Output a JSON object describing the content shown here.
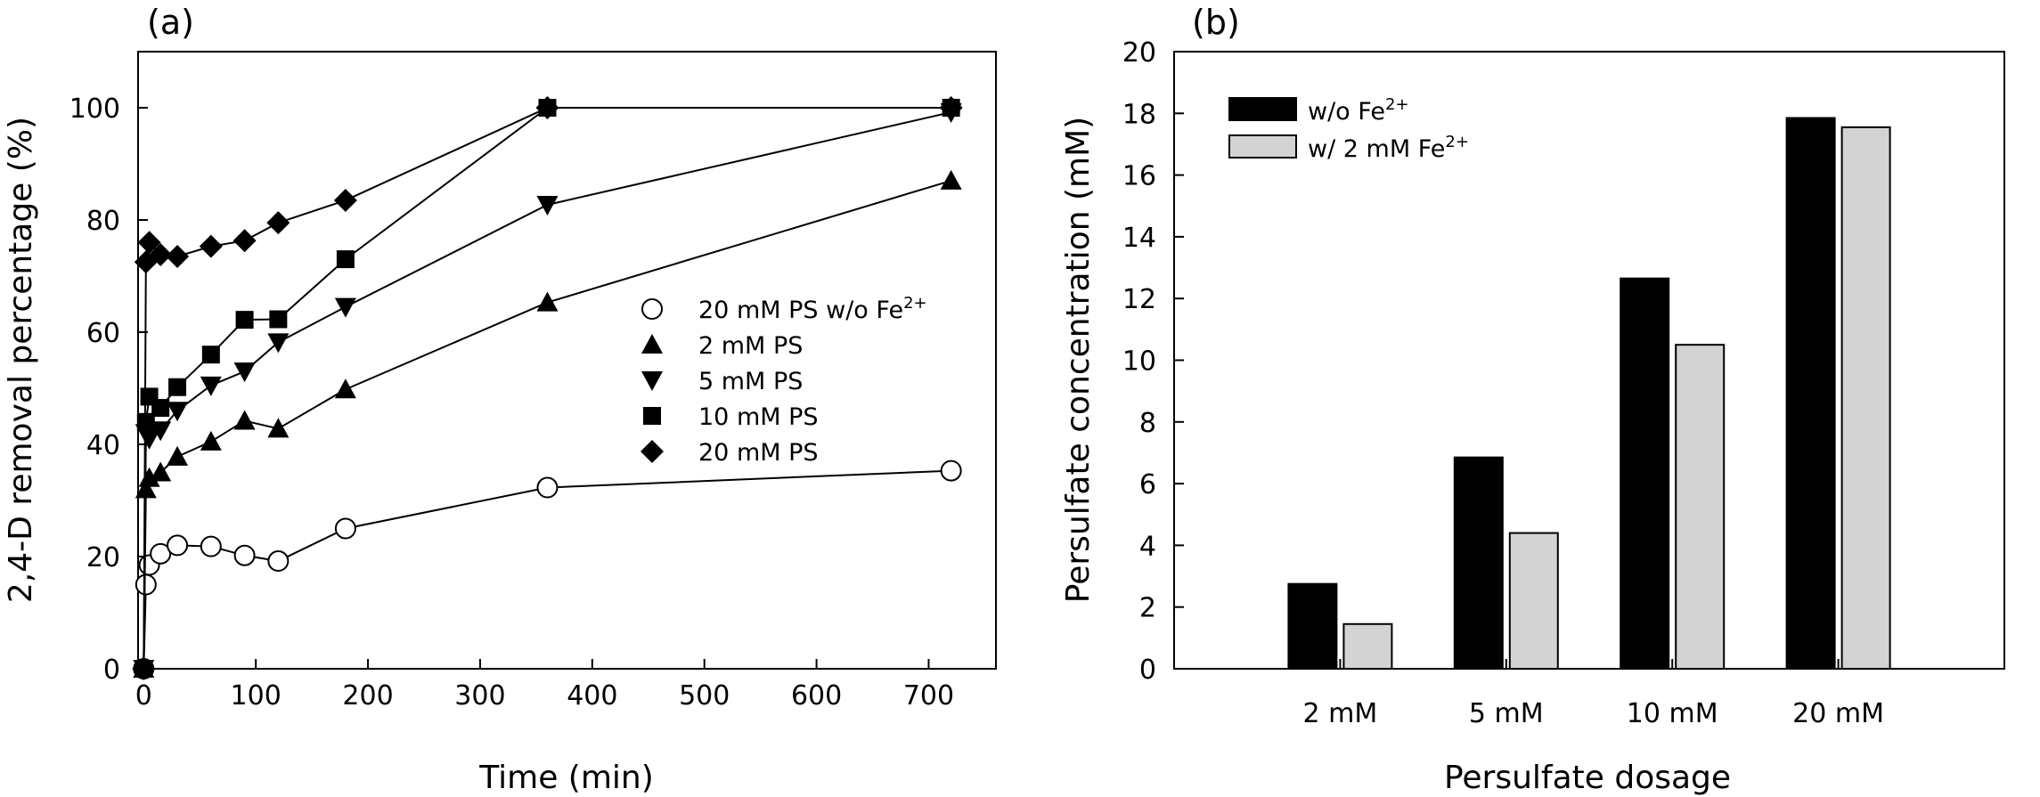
{
  "chart_data": [
    {
      "panel_label": "(a)",
      "type": "line",
      "xlabel": "Time (min)",
      "ylabel": "2,4-D removal percentage (%)",
      "xlim": [
        -5,
        760
      ],
      "ylim": [
        0,
        110
      ],
      "xticks": [
        0,
        100,
        200,
        300,
        400,
        500,
        600,
        700
      ],
      "yticks": [
        0,
        20,
        40,
        60,
        80,
        100
      ],
      "legend_position": "center-right",
      "series": [
        {
          "name": "20 mM PS w/o Fe",
          "name_sup": "2+",
          "marker": "circle-open",
          "x": [
            0,
            2,
            5,
            15,
            30,
            60,
            90,
            120,
            180,
            360,
            720
          ],
          "y": [
            0,
            15,
            18.5,
            20.5,
            22,
            21.8,
            20.2,
            19.2,
            25,
            32.3,
            35.3
          ]
        },
        {
          "name": "2 mM PS",
          "name_sup": "",
          "marker": "triangle-up",
          "x": [
            0,
            2,
            5,
            15,
            30,
            60,
            90,
            120,
            180,
            360,
            720
          ],
          "y": [
            0,
            32,
            34,
            35,
            37.8,
            40.5,
            44.2,
            42.8,
            49.8,
            65.3,
            87
          ]
        },
        {
          "name": "5 mM PS",
          "name_sup": "",
          "marker": "triangle-down",
          "x": [
            0,
            2,
            5,
            15,
            30,
            60,
            90,
            120,
            180,
            360,
            720
          ],
          "y": [
            0,
            42,
            41,
            42.5,
            46,
            50.5,
            53,
            58.2,
            64.5,
            82.7,
            99.2
          ]
        },
        {
          "name": "10 mM PS",
          "name_sup": "",
          "marker": "square",
          "x": [
            0,
            2,
            5,
            15,
            30,
            60,
            90,
            120,
            180,
            360,
            720
          ],
          "y": [
            0,
            44,
            48.5,
            46.5,
            50.2,
            56,
            62.2,
            62.3,
            73,
            100,
            100
          ]
        },
        {
          "name": "20 mM PS",
          "name_sup": "",
          "marker": "diamond",
          "x": [
            0,
            2,
            5,
            15,
            30,
            60,
            90,
            120,
            180,
            360,
            720
          ],
          "y": [
            0,
            72.5,
            76,
            73.8,
            73.5,
            75.3,
            76.3,
            79.5,
            83.5,
            100,
            100
          ]
        }
      ]
    },
    {
      "panel_label": "(b)",
      "type": "bar",
      "xlabel": "Persulfate dosage",
      "ylabel": "Persulfate concentration (mM)",
      "ylim": [
        0,
        20
      ],
      "yticks": [
        0,
        2,
        4,
        6,
        8,
        10,
        12,
        14,
        16,
        18,
        20
      ],
      "categories": [
        "2 mM",
        "5 mM",
        "10 mM",
        "20 mM"
      ],
      "legend_position": "top-left",
      "series": [
        {
          "name": "w/o Fe",
          "name_sup": "2+",
          "color": "#000000",
          "values": [
            2.75,
            6.85,
            12.65,
            17.85
          ]
        },
        {
          "name": "w/ 2 mM Fe",
          "name_sup": "2+",
          "color": "#d3d3d3",
          "values": [
            1.45,
            4.4,
            10.5,
            17.55
          ]
        }
      ]
    }
  ]
}
